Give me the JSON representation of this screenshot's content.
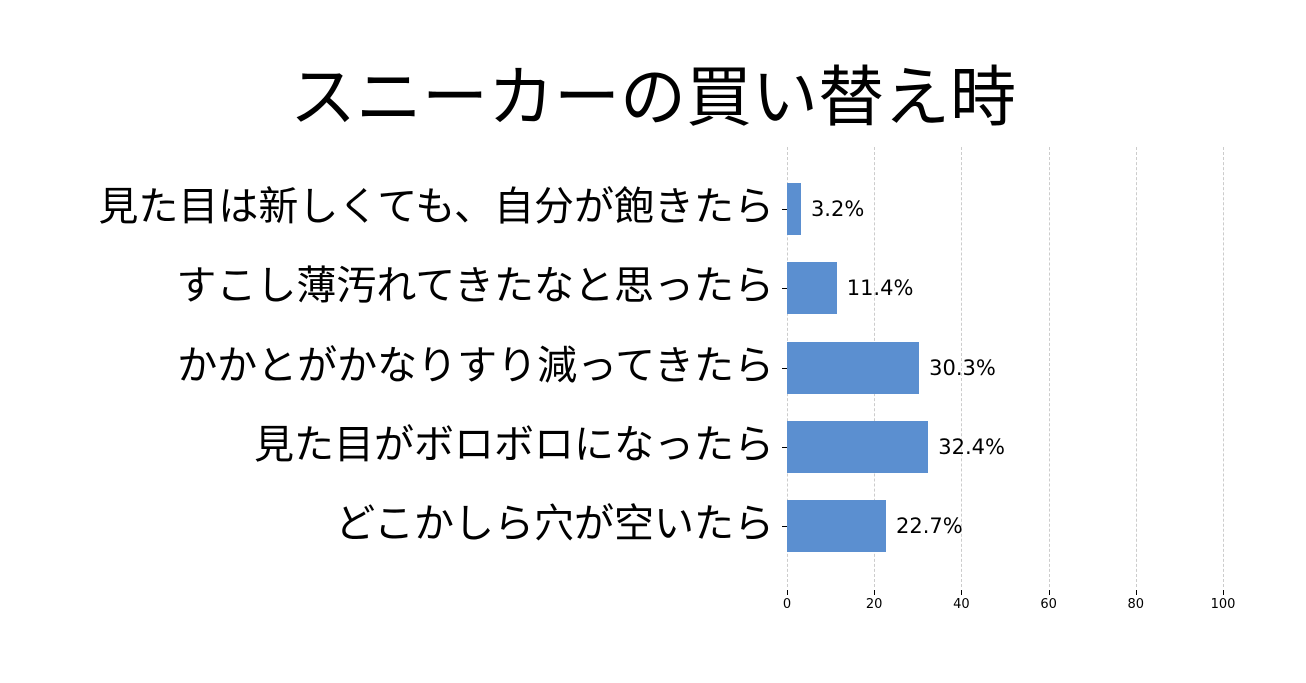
{
  "title": "スニーカーの買い替え時",
  "colors": {
    "bar": "#5b8fd0",
    "grid": "#cccccc"
  },
  "chart_data": {
    "type": "bar",
    "orientation": "horizontal",
    "title": "スニーカーの買い替え時",
    "categories": [
      "見た目は新しくても、自分が飽きたら",
      "すこし薄汚れてきたなと思ったら",
      "かかとがかなりすり減ってきたら",
      "見た目がボロボロになったら",
      "どこかしら穴が空いたら"
    ],
    "values": [
      3.2,
      11.4,
      30.3,
      32.4,
      22.7
    ],
    "value_labels": [
      "3.2%",
      "11.4%",
      "30.3%",
      "32.4%",
      "22.7%"
    ],
    "xlabel": "",
    "ylabel": "",
    "xlim": [
      0,
      100
    ],
    "xticks": [
      "0",
      "20",
      "40",
      "60",
      "80",
      "100"
    ],
    "grid": "vertical dashed",
    "legend": null
  }
}
